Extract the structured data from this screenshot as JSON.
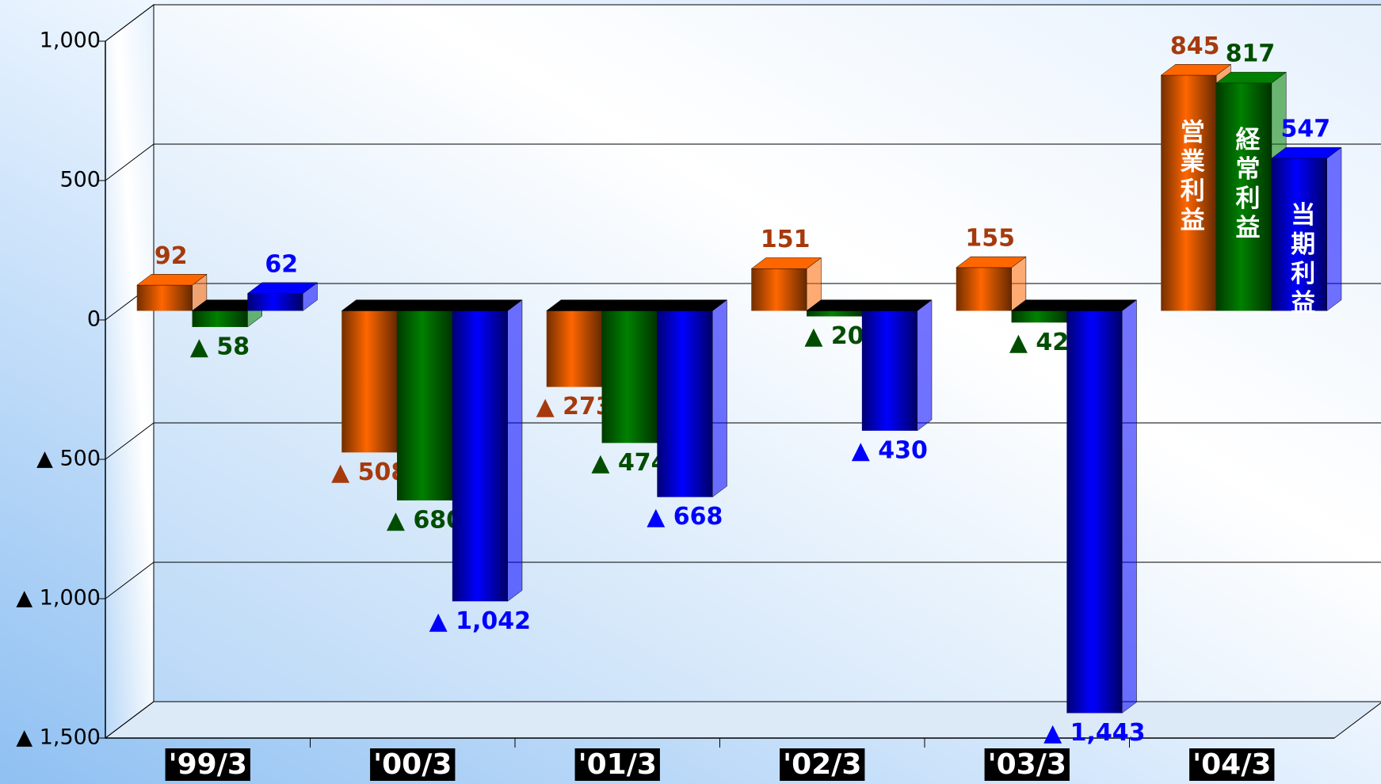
{
  "chart_data": {
    "type": "bar3d",
    "categories": [
      "'99/3",
      "'00/3",
      "'01/3",
      "'02/3",
      "'03/3",
      "'04/3"
    ],
    "series": [
      {
        "name": "営業利益",
        "color": "#ff6600",
        "label_color": "#a63a0c",
        "values": [
          92,
          -508,
          -273,
          151,
          155,
          845
        ],
        "value_labels": [
          "92",
          "▲ 508",
          "▲ 273",
          "151",
          "155",
          "845"
        ]
      },
      {
        "name": "経常利益",
        "color": "#008000",
        "label_color": "#004d00",
        "values": [
          -58,
          -680,
          -474,
          -20,
          -42,
          817
        ],
        "value_labels": [
          "▲ 58",
          "▲ 680",
          "▲ 474",
          "▲ 20",
          "▲ 42",
          "817"
        ]
      },
      {
        "name": "当期利益",
        "color": "#0000ff",
        "label_color": "#0000ff",
        "values": [
          62,
          -1042,
          -668,
          -430,
          -1443,
          547
        ],
        "value_labels": [
          "62",
          "▲ 1,042",
          "▲ 668",
          "▲ 430",
          "▲ 1,443",
          "547"
        ]
      }
    ],
    "ylim": [
      -1500,
      1000
    ],
    "yticks": [
      {
        "value": -1500,
        "label": "▲ 1,500"
      },
      {
        "value": -1000,
        "label": "▲ 1,000"
      },
      {
        "value": -500,
        "label": "▲ 500"
      },
      0,
      500,
      {
        "value": 1000,
        "label": "1,000"
      }
    ],
    "grid": true
  }
}
